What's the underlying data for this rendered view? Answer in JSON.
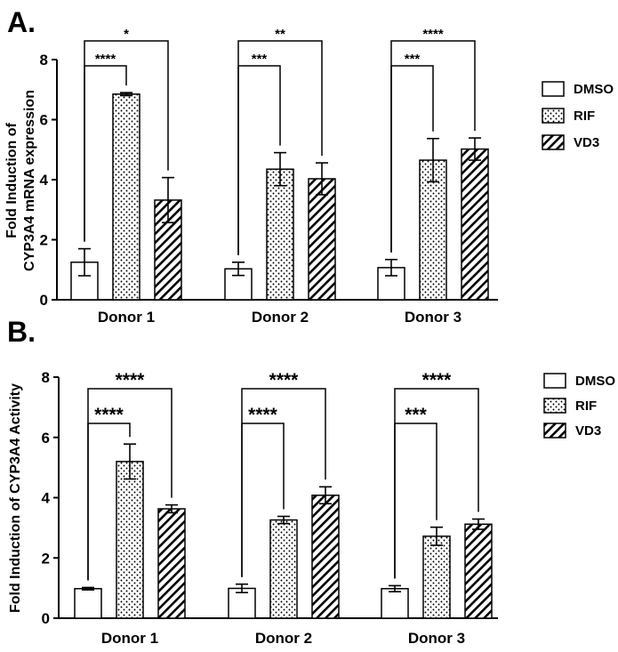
{
  "chart_data": [
    {
      "type": "bar",
      "panel": "A.",
      "ylabel_line1": "Fold Induction of",
      "ylabel_line2": "CYP3A4 mRNA expression",
      "categories": [
        "Donor 1",
        "Donor 2",
        "Donor 3"
      ],
      "ylim": [
        0,
        8
      ],
      "yticks": [
        "0",
        "2",
        "4",
        "6",
        "8"
      ],
      "series": [
        {
          "name": "DMSO",
          "pattern": "none",
          "values": [
            1.25,
            1.03,
            1.07
          ],
          "errors": [
            0.45,
            0.22,
            0.27
          ]
        },
        {
          "name": "RIF",
          "pattern": "dots",
          "values": [
            6.85,
            4.35,
            4.65
          ],
          "errors": [
            0.05,
            0.55,
            0.72
          ]
        },
        {
          "name": "VD3",
          "pattern": "hatch",
          "values": [
            3.32,
            4.03,
            5.02
          ],
          "errors": [
            0.75,
            0.53,
            0.37
          ]
        }
      ],
      "comparisons": [
        {
          "group": 0,
          "from": 0,
          "to": 1,
          "level": 0,
          "label": "****"
        },
        {
          "group": 0,
          "from": 0,
          "to": 2,
          "level": 1,
          "label": "*"
        },
        {
          "group": 1,
          "from": 0,
          "to": 1,
          "level": 0,
          "label": "***"
        },
        {
          "group": 1,
          "from": 0,
          "to": 2,
          "level": 1,
          "label": "**"
        },
        {
          "group": 2,
          "from": 0,
          "to": 1,
          "level": 0,
          "label": "***"
        },
        {
          "group": 2,
          "from": 0,
          "to": 2,
          "level": 1,
          "label": "****"
        }
      ]
    },
    {
      "type": "bar",
      "panel": "B.",
      "ylabel_line1": "Fold Induction of CYP3A4 Activity",
      "ylabel_line2": "",
      "categories": [
        "Donor 1",
        "Donor 2",
        "Donor 3"
      ],
      "ylim": [
        0,
        8
      ],
      "yticks": [
        "0",
        "2",
        "4",
        "6",
        "8"
      ],
      "series": [
        {
          "name": "DMSO",
          "pattern": "none",
          "values": [
            0.98,
            0.99,
            0.98
          ],
          "errors": [
            0.04,
            0.14,
            0.1
          ]
        },
        {
          "name": "RIF",
          "pattern": "dots",
          "values": [
            5.2,
            3.26,
            2.72
          ],
          "errors": [
            0.58,
            0.12,
            0.3
          ]
        },
        {
          "name": "VD3",
          "pattern": "hatch",
          "values": [
            3.63,
            4.08,
            3.12
          ],
          "errors": [
            0.13,
            0.28,
            0.17
          ]
        }
      ],
      "comparisons": [
        {
          "group": 0,
          "from": 0,
          "to": 1,
          "level": 0,
          "label": "****"
        },
        {
          "group": 0,
          "from": 0,
          "to": 2,
          "level": 1,
          "label": "****"
        },
        {
          "group": 1,
          "from": 0,
          "to": 1,
          "level": 0,
          "label": "****"
        },
        {
          "group": 1,
          "from": 0,
          "to": 2,
          "level": 1,
          "label": "****"
        },
        {
          "group": 2,
          "from": 0,
          "to": 1,
          "level": 0,
          "label": "***"
        },
        {
          "group": 2,
          "from": 0,
          "to": 2,
          "level": 1,
          "label": "****"
        }
      ]
    }
  ]
}
